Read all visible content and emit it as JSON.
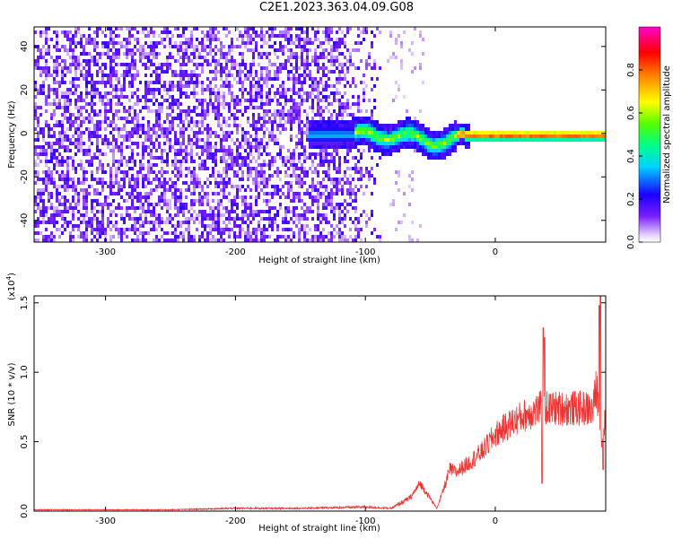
{
  "title": "C2E1.2023.363.04.09.G08",
  "chart_data": [
    {
      "type": "heatmap",
      "xlabel": "Height of straight line (km)",
      "ylabel": "Frequency (Hz)",
      "xlim": [
        -355,
        85
      ],
      "ylim": [
        -50,
        49
      ],
      "x_ticks": [
        -300,
        -200,
        -100,
        0
      ],
      "y_ticks": [
        -40,
        -20,
        0,
        20,
        40
      ],
      "colorbar": {
        "label": "Normalized spectral amplitude",
        "range": [
          0,
          1
        ],
        "ticks": [
          "0.0",
          "0.2",
          "0.4",
          "0.6",
          "0.8"
        ],
        "colormap": "rainbow (white→purple→blue→cyan→green→yellow→red→magenta)"
      },
      "features": {
        "noise_region_x": [
          -355,
          -85
        ],
        "signal_line_frequency": 0,
        "signal_start_x": -145,
        "signal_strong_from_x": -30,
        "dip_center_x": -45,
        "dip_frequency": -3
      },
      "grid": false
    },
    {
      "type": "line",
      "xlabel": "Height of straight line (km)",
      "ylabel": "SNR (10 * v/v)",
      "y_multiplier": "(x10",
      "y_multiplier_exp": "4",
      "y_multiplier_close": ")",
      "xlim": [
        -355,
        85
      ],
      "ylim": [
        0,
        1.55
      ],
      "x_ticks": [
        -300,
        -200,
        -100,
        0
      ],
      "y_ticks": [
        "0.0",
        "0.5",
        "1.0",
        "1.5"
      ],
      "y_tick_values": [
        0,
        0.5,
        1.0,
        1.5
      ],
      "series": [
        {
          "color": "#ee3333",
          "x": [
            -355,
            -300,
            -250,
            -200,
            -150,
            -100,
            -80,
            -65,
            -58,
            -52,
            -45,
            -40,
            -35,
            -30,
            -20,
            -10,
            0,
            10,
            20,
            30,
            35,
            40,
            50,
            60,
            70,
            75,
            78,
            82,
            85
          ],
          "y": [
            0.01,
            0.01,
            0.01,
            0.02,
            0.02,
            0.03,
            0.02,
            0.1,
            0.2,
            0.12,
            0.02,
            0.15,
            0.3,
            0.28,
            0.35,
            0.43,
            0.55,
            0.62,
            0.68,
            0.72,
            0.74,
            0.74,
            0.74,
            0.74,
            0.74,
            0.72,
            0.9,
            0.5,
            0.7
          ],
          "spikes": [
            {
              "x": 37,
              "y": 1.32
            },
            {
              "x": 38,
              "y": 1.25
            },
            {
              "x": 36,
              "y": 0.2
            },
            {
              "x": 81,
              "y": 1.55
            },
            {
              "x": 83,
              "y": 0.3
            },
            {
              "x": 80,
              "y": 1.48
            }
          ]
        }
      ],
      "grid": false
    }
  ]
}
